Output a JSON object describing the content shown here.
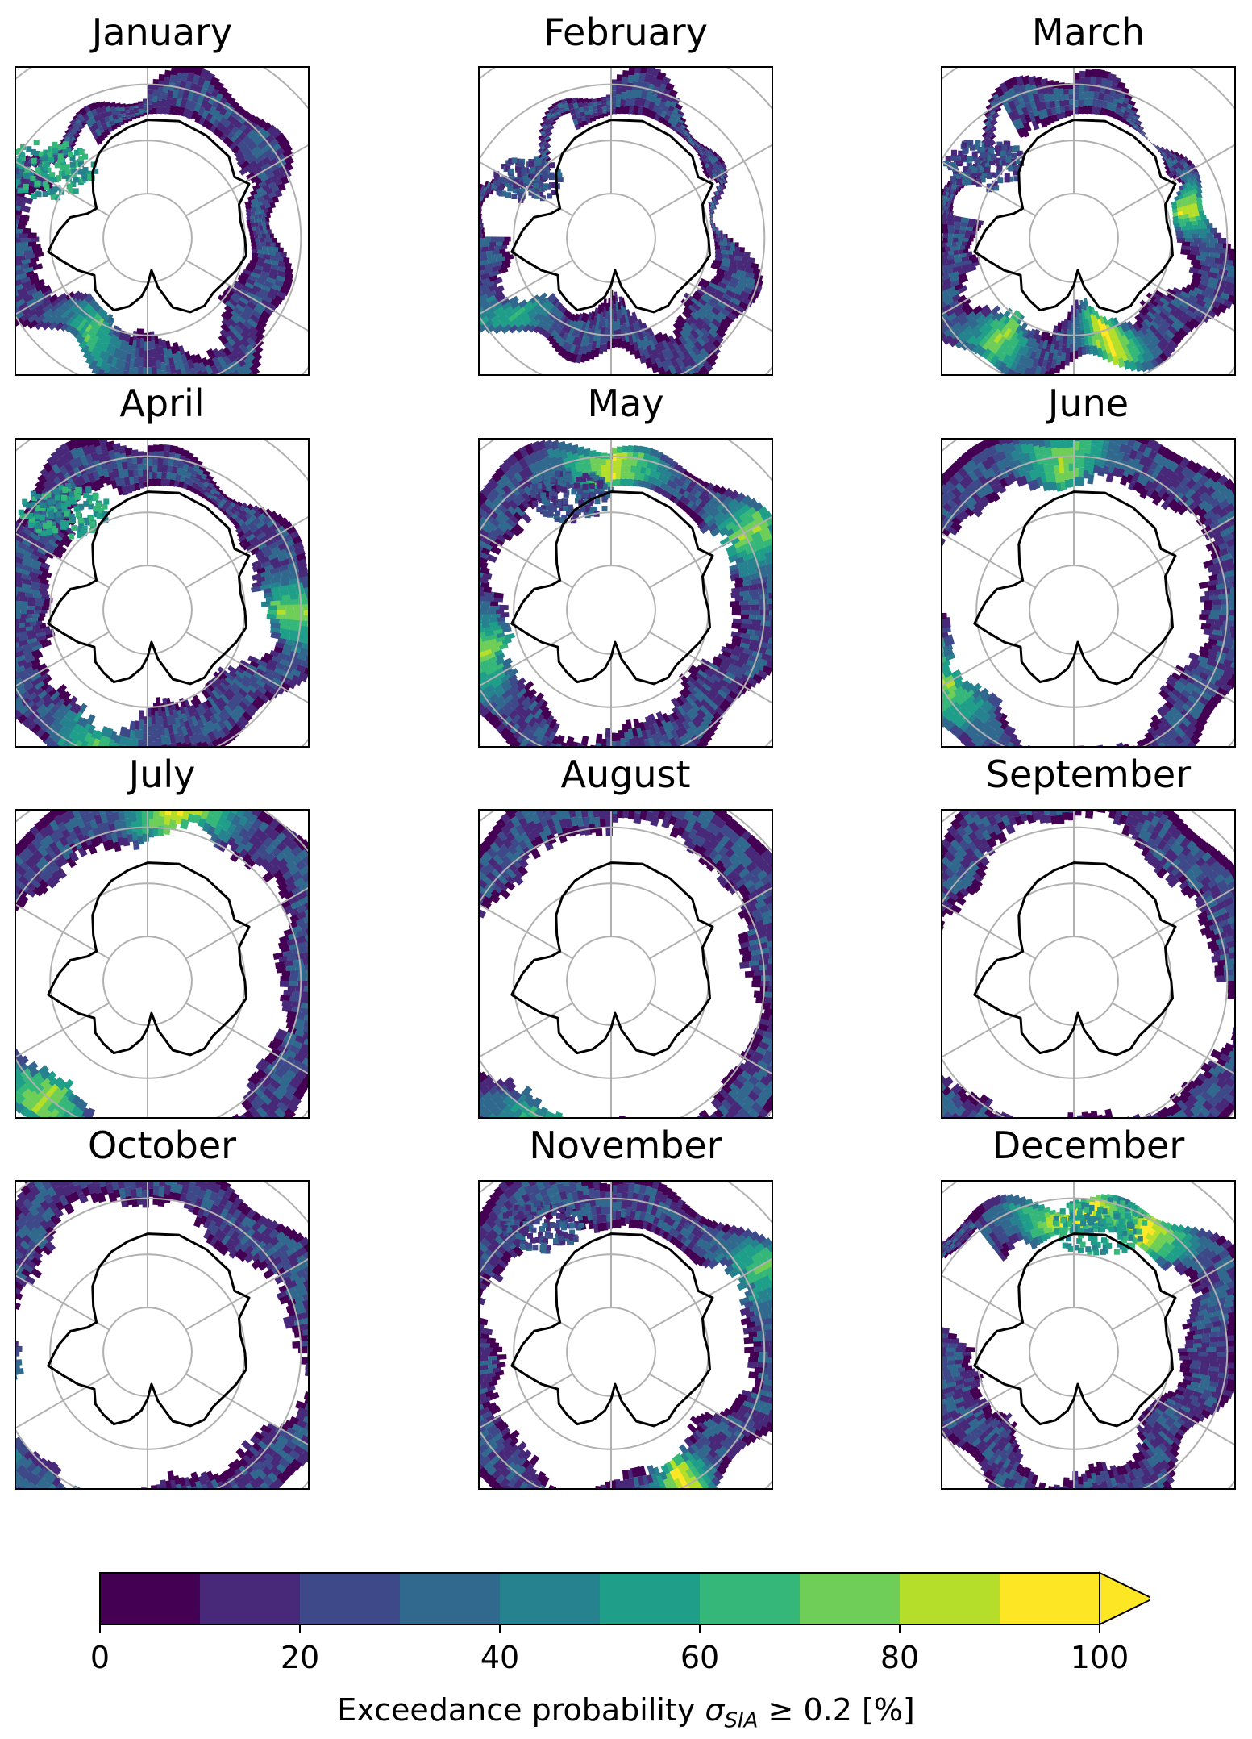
{
  "panels": [
    {
      "title": "January",
      "ice": {
        "outer": 0.52,
        "wobble": 0.14,
        "gaps": [
          [
            300,
            330,
            0.07
          ]
        ],
        "blobs": [
          [
            305,
            0.42,
            0.16,
            12
          ]
        ],
        "hi": [
          [
            210,
            25,
            5
          ]
        ]
      }
    },
    {
      "title": "February",
      "ice": {
        "outer": 0.47,
        "wobble": 0.16,
        "gaps": [
          [
            270,
            340,
            0.05
          ]
        ],
        "blobs": [
          [
            305,
            0.36,
            0.12,
            8
          ]
        ],
        "hi": [
          [
            230,
            20,
            4
          ]
        ]
      }
    },
    {
      "title": "March",
      "ice": {
        "outer": 0.5,
        "wobble": 0.13,
        "gaps": [
          [
            280,
            330,
            0.05
          ]
        ],
        "blobs": [
          [
            310,
            0.4,
            0.14,
            6
          ]
        ],
        "hi": [
          [
            75,
            18,
            7
          ],
          [
            160,
            20,
            8
          ],
          [
            215,
            20,
            6
          ]
        ]
      }
    },
    {
      "title": "April",
      "ice": {
        "outer": 0.55,
        "wobble": 0.1,
        "gaps": [],
        "blobs": [
          [
            320,
            0.45,
            0.15,
            9
          ]
        ],
        "hi": [
          [
            90,
            20,
            6
          ],
          [
            200,
            25,
            5
          ]
        ]
      }
    },
    {
      "title": "May",
      "ice": {
        "outer": 0.58,
        "wobble": 0.08,
        "gaps": [],
        "blobs": [
          [
            340,
            0.42,
            0.14,
            8
          ]
        ],
        "hi": [
          [
            0,
            30,
            7
          ],
          [
            60,
            20,
            6
          ],
          [
            250,
            25,
            6
          ]
        ]
      }
    },
    {
      "title": "June",
      "ice": {
        "outer": 0.64,
        "wobble": 0.08,
        "gaps": [],
        "blobs": [],
        "hi": [
          [
            355,
            25,
            6
          ],
          [
            240,
            30,
            6
          ]
        ]
      }
    },
    {
      "title": "July",
      "ice": {
        "outer": 0.68,
        "wobble": 0.08,
        "gaps": [],
        "blobs": [],
        "hi": [
          [
            10,
            25,
            8
          ],
          [
            220,
            30,
            6
          ]
        ]
      }
    },
    {
      "title": "August",
      "ice": {
        "outer": 0.69,
        "wobble": 0.07,
        "gaps": [],
        "blobs": [],
        "hi": [
          [
            200,
            30,
            6
          ],
          [
            270,
            25,
            5
          ]
        ]
      }
    },
    {
      "title": "September",
      "ice": {
        "outer": 0.69,
        "wobble": 0.08,
        "gaps": [],
        "blobs": [],
        "hi": [
          [
            250,
            30,
            5
          ]
        ]
      }
    },
    {
      "title": "October",
      "ice": {
        "outer": 0.67,
        "wobble": 0.09,
        "gaps": [],
        "blobs": [],
        "hi": [
          [
            250,
            30,
            6
          ],
          [
            200,
            25,
            5
          ]
        ]
      }
    },
    {
      "title": "November",
      "ice": {
        "outer": 0.62,
        "wobble": 0.1,
        "gaps": [],
        "blobs": [
          [
            330,
            0.5,
            0.14,
            4
          ]
        ],
        "hi": [
          [
            150,
            15,
            8
          ],
          [
            60,
            20,
            5
          ]
        ]
      }
    },
    {
      "title": "December",
      "ice": {
        "outer": 0.56,
        "wobble": 0.12,
        "gaps": [
          [
            280,
            320,
            0.08
          ]
        ],
        "blobs": [
          [
            10,
            0.44,
            0.16,
            10
          ]
        ],
        "hi": [
          [
            0,
            35,
            9
          ],
          [
            30,
            25,
            8
          ]
        ]
      }
    }
  ],
  "colorbar": {
    "label_prefix": "Exceedance probability ",
    "label_symbol": "σ",
    "label_subscript": "SIA",
    "label_suffix": " ≥ 0.2 [%]",
    "ticks": [
      "0",
      "20",
      "40",
      "60",
      "80",
      "100"
    ],
    "range": [
      0,
      100
    ],
    "bins": [
      0,
      10,
      20,
      30,
      40,
      50,
      60,
      70,
      80,
      90,
      100
    ],
    "extend": "max",
    "colors": [
      "#440154",
      "#482878",
      "#3e4989",
      "#31688e",
      "#26828e",
      "#1f9e89",
      "#35b779",
      "#6ece58",
      "#b5de2b",
      "#fde725"
    ]
  },
  "style": {
    "gridline_color": "#b0b0b0",
    "coast_color": "#000000",
    "frame_color": "#000000"
  }
}
